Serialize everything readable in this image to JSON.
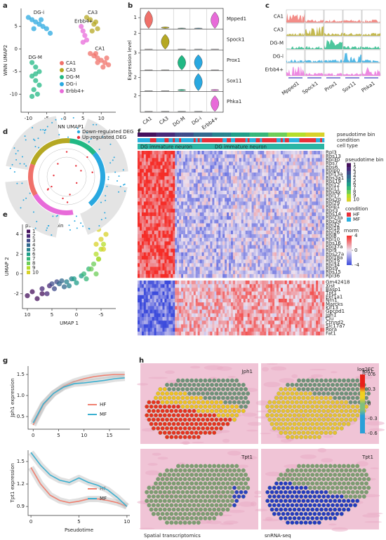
{
  "chart_data": [
    {
      "type": "scatter",
      "xlabel": "WNN UMAP1",
      "ylabel": "WNN UMAP2",
      "xlim": [
        -12,
        14
      ],
      "ylim": [
        -14,
        9
      ],
      "xticks": [
        -10,
        -5,
        0,
        5,
        10
      ],
      "yticks": [
        5,
        0,
        -5,
        -10
      ],
      "series": [
        {
          "name": "CA1",
          "color": "#f0716a",
          "x": [
            7,
            8,
            9,
            10,
            11,
            12,
            9,
            10.5,
            11.5,
            8.5
          ],
          "values": [
            -1,
            -1.5,
            -2,
            -2.5,
            -3,
            -3.5,
            -3,
            -4,
            -2,
            -1
          ]
        },
        {
          "name": "CA3",
          "color": "#b5a823",
          "x": [
            6,
            7,
            8,
            9,
            7.5,
            8.5
          ],
          "values": [
            7,
            6.5,
            5.5,
            4.5,
            4,
            6
          ]
        },
        {
          "name": "DG-M",
          "color": "#21b884",
          "x": [
            -9,
            -8,
            -7,
            -9,
            -8,
            -7,
            -8.5,
            -7.5,
            -9,
            -8
          ],
          "values": [
            -3,
            -4,
            -5,
            -6,
            -7,
            -8,
            -9,
            -10,
            -10.5,
            -5.5
          ]
        },
        {
          "name": "DG-i",
          "color": "#29a8e0",
          "x": [
            -10,
            -9,
            -8,
            -7,
            -6,
            -5,
            -4,
            -8.5,
            -6.5
          ],
          "values": [
            7,
            6.5,
            6,
            5.5,
            5,
            4.5,
            3.5,
            4.5,
            6.5
          ]
        },
        {
          "name": "Erbb4+",
          "color": "#e86bd9",
          "x": [
            4.5,
            5,
            5.5,
            6,
            5
          ],
          "values": [
            5,
            4,
            3,
            2,
            1.5
          ]
        }
      ]
    },
    {
      "type": "violin",
      "ylabel": "Expression level",
      "categories": [
        "CA1",
        "CA3",
        "DG-M",
        "DG-i",
        "Erbb4+"
      ],
      "colors": [
        "#f0716a",
        "#b5a823",
        "#21b884",
        "#29a8e0",
        "#e86bd9"
      ],
      "series": [
        {
          "name": "Mpped1",
          "ylim": [
            0,
            1.8
          ],
          "yticks": [
            1
          ],
          "values": [
            1.6,
            0.2,
            0.1,
            0.1,
            1.5
          ]
        },
        {
          "name": "Spock1",
          "ylim": [
            0,
            2.5
          ],
          "yticks": [
            2
          ],
          "values": [
            0.1,
            1.9,
            0.1,
            0.1,
            0.1
          ]
        },
        {
          "name": "Prox1",
          "ylim": [
            0,
            3.5
          ],
          "yticks": [
            3
          ],
          "values": [
            0.1,
            0.1,
            2.6,
            2.7,
            0.1
          ]
        },
        {
          "name": "Sox11",
          "ylim": [
            0,
            3
          ],
          "yticks": [
            2
          ],
          "values": [
            0.1,
            0.1,
            0.3,
            2.6,
            0.3
          ]
        },
        {
          "name": "Phka1",
          "ylim": [
            0,
            2.5
          ],
          "yticks": [
            2
          ],
          "values": [
            0.1,
            0.1,
            0.1,
            0.1,
            2.0
          ]
        }
      ]
    },
    {
      "type": "scatter",
      "xlabel": "UMAP 1",
      "ylabel": "UMAP 2",
      "legend_title": "pseudotime bin",
      "xlim": [
        11,
        -8
      ],
      "ylim": [
        -3.5,
        5
      ],
      "xticks": [
        10,
        5,
        0,
        -5
      ],
      "yticks": [
        4,
        2,
        0,
        -2
      ],
      "series": [
        {
          "name": "1",
          "color": "#45115c",
          "x": [
            10,
            9,
            8,
            7
          ],
          "values": [
            -2.2,
            -1.8,
            -2.5,
            -2
          ]
        },
        {
          "name": "2",
          "color": "#482878",
          "x": [
            7,
            6,
            5.5
          ],
          "values": [
            -1.5,
            -2,
            -1.2
          ]
        },
        {
          "name": "3",
          "color": "#3e4a89",
          "x": [
            5,
            4.5,
            4
          ],
          "values": [
            -1,
            -1.5,
            -0.8
          ]
        },
        {
          "name": "4",
          "color": "#31688e",
          "x": [
            3.5,
            3,
            2.5
          ],
          "values": [
            -1,
            -0.7,
            -1.3
          ]
        },
        {
          "name": "5",
          "color": "#26828e",
          "x": [
            2,
            1.5,
            1
          ],
          "values": [
            -0.8,
            -1.2,
            -0.5
          ]
        },
        {
          "name": "6",
          "color": "#1f9e89",
          "x": [
            0.5,
            0,
            -1
          ],
          "values": [
            -0.5,
            -0.9,
            -0.2
          ]
        },
        {
          "name": "7",
          "color": "#35b779",
          "x": [
            -1.5,
            -2,
            -2.5
          ],
          "values": [
            0,
            -0.5,
            0.5
          ]
        },
        {
          "name": "8",
          "color": "#6ece58",
          "x": [
            -3,
            -3.5,
            -4,
            -4.5
          ],
          "values": [
            0.5,
            1,
            0,
            1.5
          ]
        },
        {
          "name": "9",
          "color": "#b5de2b",
          "x": [
            -4,
            -5,
            -4.5,
            -5.5
          ],
          "values": [
            2,
            2.5,
            1.5,
            3
          ]
        },
        {
          "name": "10",
          "color": "#d8d22a",
          "x": [
            -5,
            -6,
            -4.5,
            -5.5,
            -4
          ],
          "values": [
            3.5,
            4,
            4.5,
            2.5,
            3
          ]
        }
      ]
    },
    {
      "type": "line",
      "ylabel": "Jph1 expression",
      "x": [
        0,
        2,
        4,
        6,
        8,
        10,
        12,
        14,
        16,
        18
      ],
      "xlim": [
        -1,
        19
      ],
      "ylim": [
        0.2,
        1.7
      ],
      "xticks": [
        0,
        5,
        10,
        15
      ],
      "yticks": [
        {
          "value": 0.5,
          "label": "0.5"
        },
        {
          "value": 1,
          "label": "1.0"
        },
        {
          "value": 1.5,
          "label": "1.5"
        }
      ],
      "series": [
        {
          "name": "HF",
          "color": "#f08070",
          "values": [
            0.3,
            0.78,
            1.05,
            1.22,
            1.33,
            1.4,
            1.45,
            1.48,
            1.5,
            1.5
          ]
        },
        {
          "name": "MF",
          "color": "#3bb0d0",
          "values": [
            0.35,
            0.8,
            1.05,
            1.2,
            1.28,
            1.3,
            1.33,
            1.36,
            1.4,
            1.42
          ]
        }
      ]
    },
    {
      "type": "line",
      "ylabel": "Tpt1 expression",
      "xlabel": "Pseudotime",
      "x": [
        0,
        1,
        2,
        3,
        4,
        5,
        6,
        7,
        8,
        9,
        10
      ],
      "xlim": [
        -0.3,
        10.3
      ],
      "ylim": [
        0.78,
        1.65
      ],
      "xticks": [
        0,
        5,
        10
      ],
      "yticks": [
        {
          "value": 0.9,
          "label": "0.9"
        },
        {
          "value": 1.2,
          "label": "1.2"
        },
        {
          "value": 1.5,
          "label": "1.5"
        }
      ],
      "series": [
        {
          "name": "HF",
          "color": "#f08070",
          "values": [
            1.42,
            1.2,
            1.05,
            0.98,
            0.95,
            0.97,
            1,
            1,
            0.98,
            0.95,
            0.9
          ]
        },
        {
          "name": "MF",
          "color": "#3bb0d0",
          "values": [
            1.62,
            1.45,
            1.32,
            1.25,
            1.22,
            1.28,
            1.22,
            1.18,
            1.12,
            1.02,
            0.9
          ]
        }
      ]
    }
  ],
  "figure": {
    "panels": [
      "a",
      "b",
      "c",
      "d",
      "e",
      "f",
      "g",
      "h"
    ],
    "c": {
      "rows": [
        "CA1",
        "CA3",
        "DG-M",
        "DG-i",
        "Erbb4+"
      ],
      "genes": [
        "Mpped1",
        "Spock1",
        "Prox1",
        "Sox11",
        "Phka1"
      ]
    },
    "d": {
      "legend": [
        {
          "label": "Down-regulated DEG",
          "color": "#29a8e0"
        },
        {
          "label": "Up-regulated DEG",
          "color": "#e8303a"
        }
      ]
    },
    "f": {
      "tracks": [
        "pseudotime bin",
        "condition",
        "cell type"
      ],
      "cell_type": "DG immature neuron",
      "genes_top": [
        "Rpl3",
        "Rps13",
        "Rpl30",
        "Rps7",
        "Rps6",
        "Rplp0",
        "Rpl13a",
        "Rps3a1",
        "Rps19",
        "Rpl12",
        "Rpl11",
        "Rps4x",
        "Rpl17",
        "Rps20",
        "Rpl29",
        "Rplp1",
        "Rps3",
        "Rps14",
        "Rpl23a",
        "Rps24",
        "Rpl32",
        "Rpl18",
        "Rpl26",
        "Rpl8",
        "Rpl10",
        "Rps16",
        "Rpl37a",
        "Rpl9",
        "Rps27a",
        "Rpl18a",
        "Rpl19",
        "Rpl34",
        "Rps9",
        "Rps15",
        "Rpl36"
      ],
      "genes_bottom": [
        "Gm42418",
        "Xist",
        "Basp1",
        "Tpt1",
        "Eef1a1",
        "Nrn1",
        "Marcks",
        "Kif13",
        "Gpcpd1",
        "Jph1",
        "Clu",
        "Ctnnd2",
        "Slc17a7",
        "Rora",
        "Fat1"
      ],
      "legend_bin": "pseudotime bin",
      "legend_condition": {
        "title": "condition",
        "items": [
          {
            "label": "HF",
            "color": "#e8303a"
          },
          {
            "label": "MF",
            "color": "#2ab0e0"
          }
        ]
      },
      "scale": {
        "title": "rnorm",
        "lim": [
          -4,
          4
        ],
        "ticks": [
          4,
          0,
          -4
        ]
      }
    },
    "h": {
      "genes": [
        "Jph1",
        "Tpt1"
      ],
      "scale": {
        "title": "log2FC",
        "lim": [
          -0.6,
          0.6
        ],
        "ticks": [
          0.6,
          0.3,
          0,
          -0.3,
          -0.6
        ]
      },
      "methods": [
        "Spatial transcriptomics",
        "snRNA-seq"
      ]
    }
  }
}
